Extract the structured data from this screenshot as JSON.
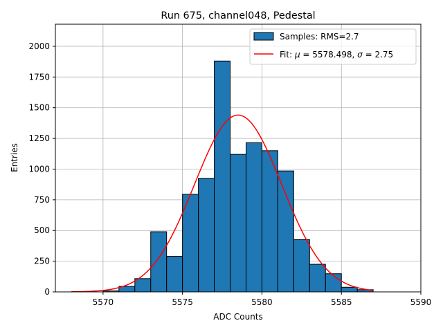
{
  "chart_data": {
    "type": "bar",
    "title": "Run 675, channel048, Pedestal",
    "xlabel": "ADC Counts",
    "ylabel": "Entries",
    "xlim": [
      5567,
      5590
    ],
    "ylim": [
      0,
      2180
    ],
    "grid": true,
    "xticks": [
      5570,
      5575,
      5580,
      5585,
      5590
    ],
    "yticks": [
      0,
      250,
      500,
      750,
      1000,
      1250,
      1500,
      1750,
      2000
    ],
    "bins": {
      "left_edges": [
        5570,
        5571,
        5572,
        5573,
        5574,
        5575,
        5576,
        5577,
        5578,
        5579,
        5580,
        5581,
        5582,
        5583,
        5584,
        5585,
        5586
      ],
      "width": 1,
      "counts": [
        8,
        45,
        108,
        490,
        290,
        795,
        925,
        1880,
        1120,
        1215,
        1150,
        985,
        425,
        225,
        148,
        38,
        18
      ]
    },
    "fit": {
      "type": "gaussian",
      "mu": 5578.498,
      "sigma": 2.75,
      "amplitude": 1440,
      "x_range": [
        5568,
        5587
      ]
    },
    "legend": {
      "placement": "top-right",
      "entries": [
        {
          "kind": "patch",
          "label": "Samples: RMS=2.7",
          "color": "#1f77b4"
        },
        {
          "kind": "line",
          "label_prefix": "Fit: ",
          "mu_symbol": "μ",
          "mu_text": " = 5578.498, ",
          "sigma_symbol": "σ",
          "sigma_text": " = 2.75",
          "color": "#ff0000"
        }
      ]
    },
    "colors": {
      "bar_fill": "#1f77b4",
      "bar_edge": "#000000",
      "fit_line": "#ff0000",
      "grid": "#b0b0b0"
    }
  }
}
